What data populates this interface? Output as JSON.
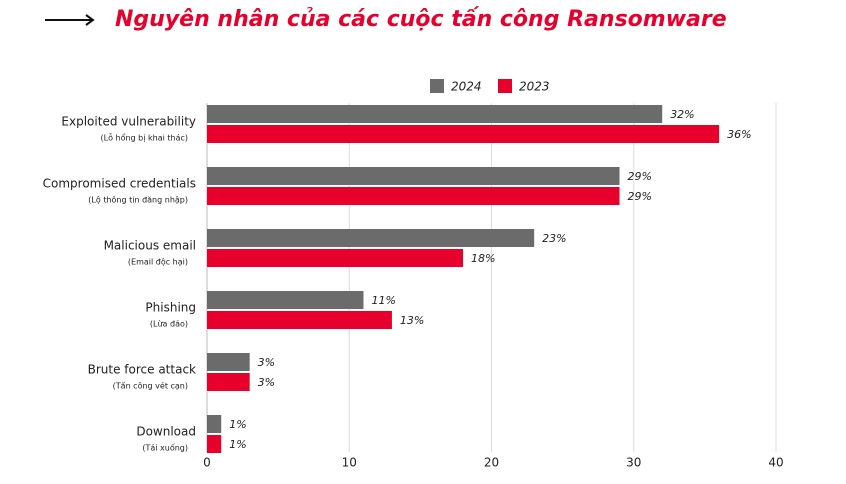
{
  "chart_data": {
    "type": "barh",
    "title": "Nguyên nhân của các cuộc tấn công Ransomware",
    "categories": [
      "Exploited vulnerability",
      "Compromised credentials",
      "Malicious email",
      "Phishing",
      "Brute force attack",
      "Download"
    ],
    "subcategories": [
      "(Lỗ hổng bị khai thác)",
      "(Lộ thông tin đăng nhập)",
      "(Email độc hại)",
      "(Lừa đảo)",
      "(Tấn công vét cạn)",
      "(Tải xuống)"
    ],
    "series": [
      {
        "name": "2024",
        "color": "#6b6b6b",
        "values": [
          32,
          29,
          23,
          11,
          3,
          1
        ],
        "value_labels": [
          "32%",
          "29%",
          "23%",
          "11%",
          "3%",
          "1%"
        ]
      },
      {
        "name": "2023",
        "color": "#e8002d",
        "values": [
          36,
          29,
          18,
          13,
          3,
          1
        ],
        "value_labels": [
          "36%",
          "29%",
          "18%",
          "13%",
          "3%",
          "1%"
        ]
      }
    ],
    "xlim": [
      0,
      40
    ],
    "xticks": [
      0,
      10,
      20,
      30,
      40
    ],
    "grid": true,
    "legend": "top"
  }
}
